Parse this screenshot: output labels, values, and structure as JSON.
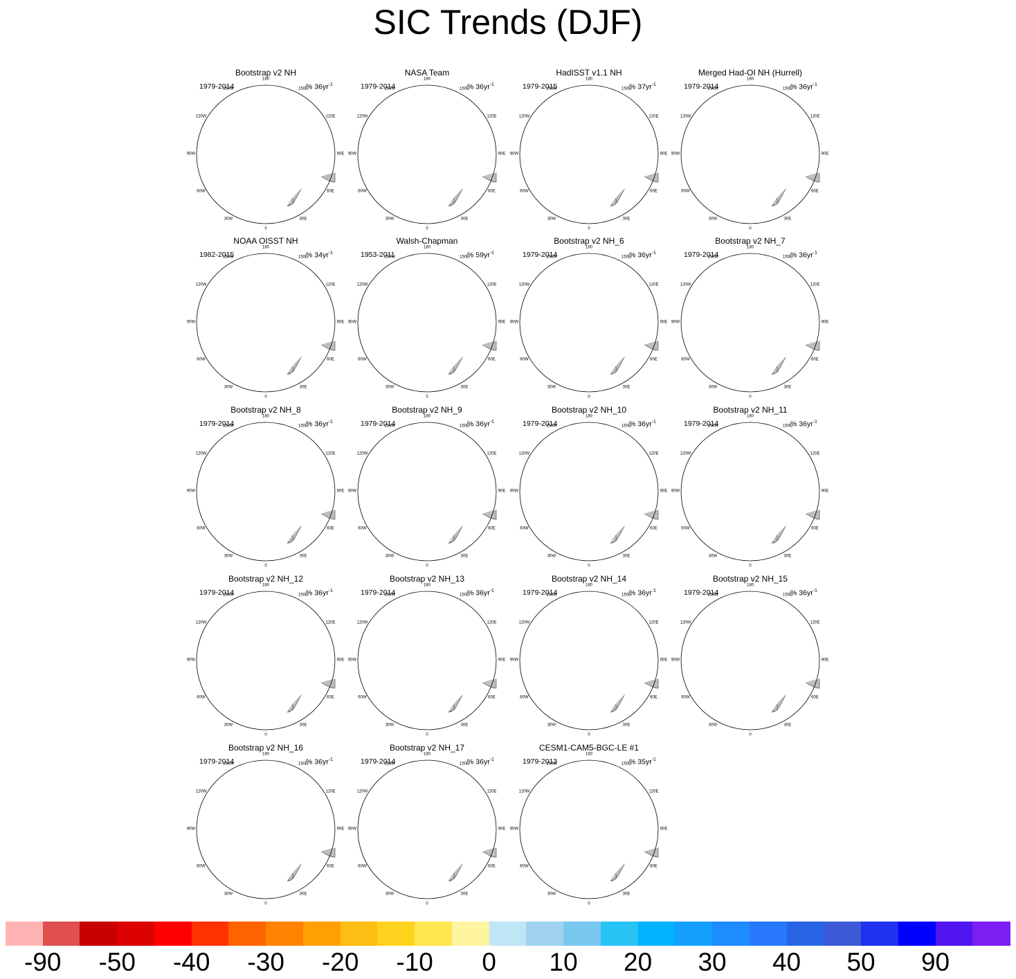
{
  "title": "SIC Trends (DJF)",
  "chart_data": {
    "type": "heatmap",
    "projection": "north polar stereographic",
    "season": "DJF",
    "units_label": "%",
    "units_suffix": "yr",
    "units_exponent": "-1",
    "longitude_labels": [
      "180",
      "150E",
      "120E",
      "90E",
      "60E",
      "30E",
      "0",
      "30W",
      "60W",
      "90W",
      "120W",
      "150W"
    ],
    "panels": [
      {
        "name": "Bootstrap v2 NH",
        "years": "1979-2014",
        "span": "36"
      },
      {
        "name": "NASA Team",
        "years": "1979-2014",
        "span": "36"
      },
      {
        "name": "HadISST v1.1 NH",
        "years": "1979-2015",
        "span": "37"
      },
      {
        "name": "Merged Had-OI NH (Hurrell)",
        "years": "1979-2014",
        "span": "36"
      },
      {
        "name": "NOAA OISST NH",
        "years": "1982-2015",
        "span": "34"
      },
      {
        "name": "Walsh-Chapman",
        "years": "1953-2011",
        "span": "59"
      },
      {
        "name": "Bootstrap v2 NH_6",
        "years": "1979-2014",
        "span": "36"
      },
      {
        "name": "Bootstrap v2 NH_7",
        "years": "1979-2014",
        "span": "36"
      },
      {
        "name": "Bootstrap v2 NH_8",
        "years": "1979-2014",
        "span": "36"
      },
      {
        "name": "Bootstrap v2 NH_9",
        "years": "1979-2014",
        "span": "36"
      },
      {
        "name": "Bootstrap v2 NH_10",
        "years": "1979-2014",
        "span": "36"
      },
      {
        "name": "Bootstrap v2 NH_11",
        "years": "1979-2014",
        "span": "36"
      },
      {
        "name": "Bootstrap v2 NH_12",
        "years": "1979-2014",
        "span": "36"
      },
      {
        "name": "Bootstrap v2 NH_13",
        "years": "1979-2014",
        "span": "36"
      },
      {
        "name": "Bootstrap v2 NH_14",
        "years": "1979-2014",
        "span": "36"
      },
      {
        "name": "Bootstrap v2 NH_15",
        "years": "1979-2014",
        "span": "36"
      },
      {
        "name": "Bootstrap v2 NH_16",
        "years": "1979-2014",
        "span": "36"
      },
      {
        "name": "Bootstrap v2 NH_17",
        "years": "1979-2014",
        "span": "36"
      },
      {
        "name": "CESM1-CAM5-BGC-LE #1",
        "years": "1979-2013",
        "span": "35"
      }
    ],
    "colorbar": {
      "levels": [
        "-90",
        "-50",
        "-40",
        "-30",
        "-20",
        "-10",
        "0",
        "10",
        "20",
        "30",
        "40",
        "50",
        "90"
      ],
      "colors": [
        "#ffb4b4",
        "#e05050",
        "#c80000",
        "#dc0000",
        "#ff0000",
        "#ff3200",
        "#ff6400",
        "#ff8200",
        "#ffa000",
        "#ffbe14",
        "#ffd21e",
        "#ffe650",
        "#fff5a0",
        "#bee6f5",
        "#a0d2f0",
        "#78c8f0",
        "#28c3f5",
        "#00b4ff",
        "#14a0ff",
        "#1e8cff",
        "#2878ff",
        "#2864e6",
        "#3c5ad7",
        "#1e32f0",
        "#0000ff",
        "#5014f0",
        "#7d1ef5"
      ]
    },
    "style": {
      "land": "#bebebe",
      "coast": "#555555",
      "ocean": "#ffffff"
    }
  }
}
